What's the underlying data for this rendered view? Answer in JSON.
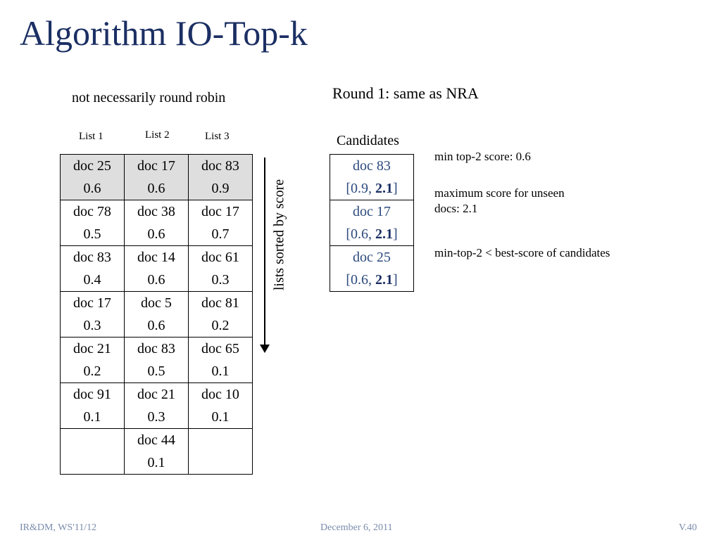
{
  "title": "Algorithm IO-Top-k",
  "subtitle_left": "not necessarily round robin",
  "subtitle_right": "Round 1: same as NRA",
  "lists": {
    "headers": [
      "List 1",
      "List 2",
      "List 3"
    ],
    "rows": [
      [
        {
          "doc": "doc 25",
          "score": "0.6"
        },
        {
          "doc": "doc 17",
          "score": "0.6"
        },
        {
          "doc": "doc 83",
          "score": "0.9"
        }
      ],
      [
        {
          "doc": "doc 78",
          "score": "0.5"
        },
        {
          "doc": "doc 38",
          "score": "0.6"
        },
        {
          "doc": "doc 17",
          "score": "0.7"
        }
      ],
      [
        {
          "doc": "doc 83",
          "score": "0.4"
        },
        {
          "doc": "doc 14",
          "score": "0.6"
        },
        {
          "doc": "doc 61",
          "score": "0.3"
        }
      ],
      [
        {
          "doc": "doc 17",
          "score": "0.3"
        },
        {
          "doc": "doc 5",
          "score": "0.6"
        },
        {
          "doc": "doc 81",
          "score": "0.2"
        }
      ],
      [
        {
          "doc": "doc 21",
          "score": "0.2"
        },
        {
          "doc": "doc 83",
          "score": "0.5"
        },
        {
          "doc": "doc 65",
          "score": "0.1"
        }
      ],
      [
        {
          "doc": "doc 91",
          "score": "0.1"
        },
        {
          "doc": "doc 21",
          "score": "0.3"
        },
        {
          "doc": "doc 10",
          "score": "0.1"
        }
      ],
      [
        {
          "doc": "",
          "score": ""
        },
        {
          "doc": "doc 44",
          "score": "0.1"
        },
        {
          "doc": "",
          "score": ""
        }
      ]
    ],
    "sorted_label": "lists sorted by score"
  },
  "candidates": {
    "header": "Candidates",
    "items": [
      {
        "doc": "doc 83",
        "low": "0.9",
        "high": "2.1"
      },
      {
        "doc": "doc 17",
        "low": "0.6",
        "high": "2.1"
      },
      {
        "doc": "doc 25",
        "low": "0.6",
        "high": "2.1"
      }
    ]
  },
  "notes": {
    "min_top2": "min top-2 score: 0.6",
    "max_unseen_line1": "maximum score for unseen",
    "max_unseen_line2": "docs: 2.1",
    "comparison": "min-top-2 < best-score of candidates"
  },
  "footer": {
    "left": "IR&DM, WS'11/12",
    "center": "December 6, 2011",
    "right": "V.40"
  }
}
